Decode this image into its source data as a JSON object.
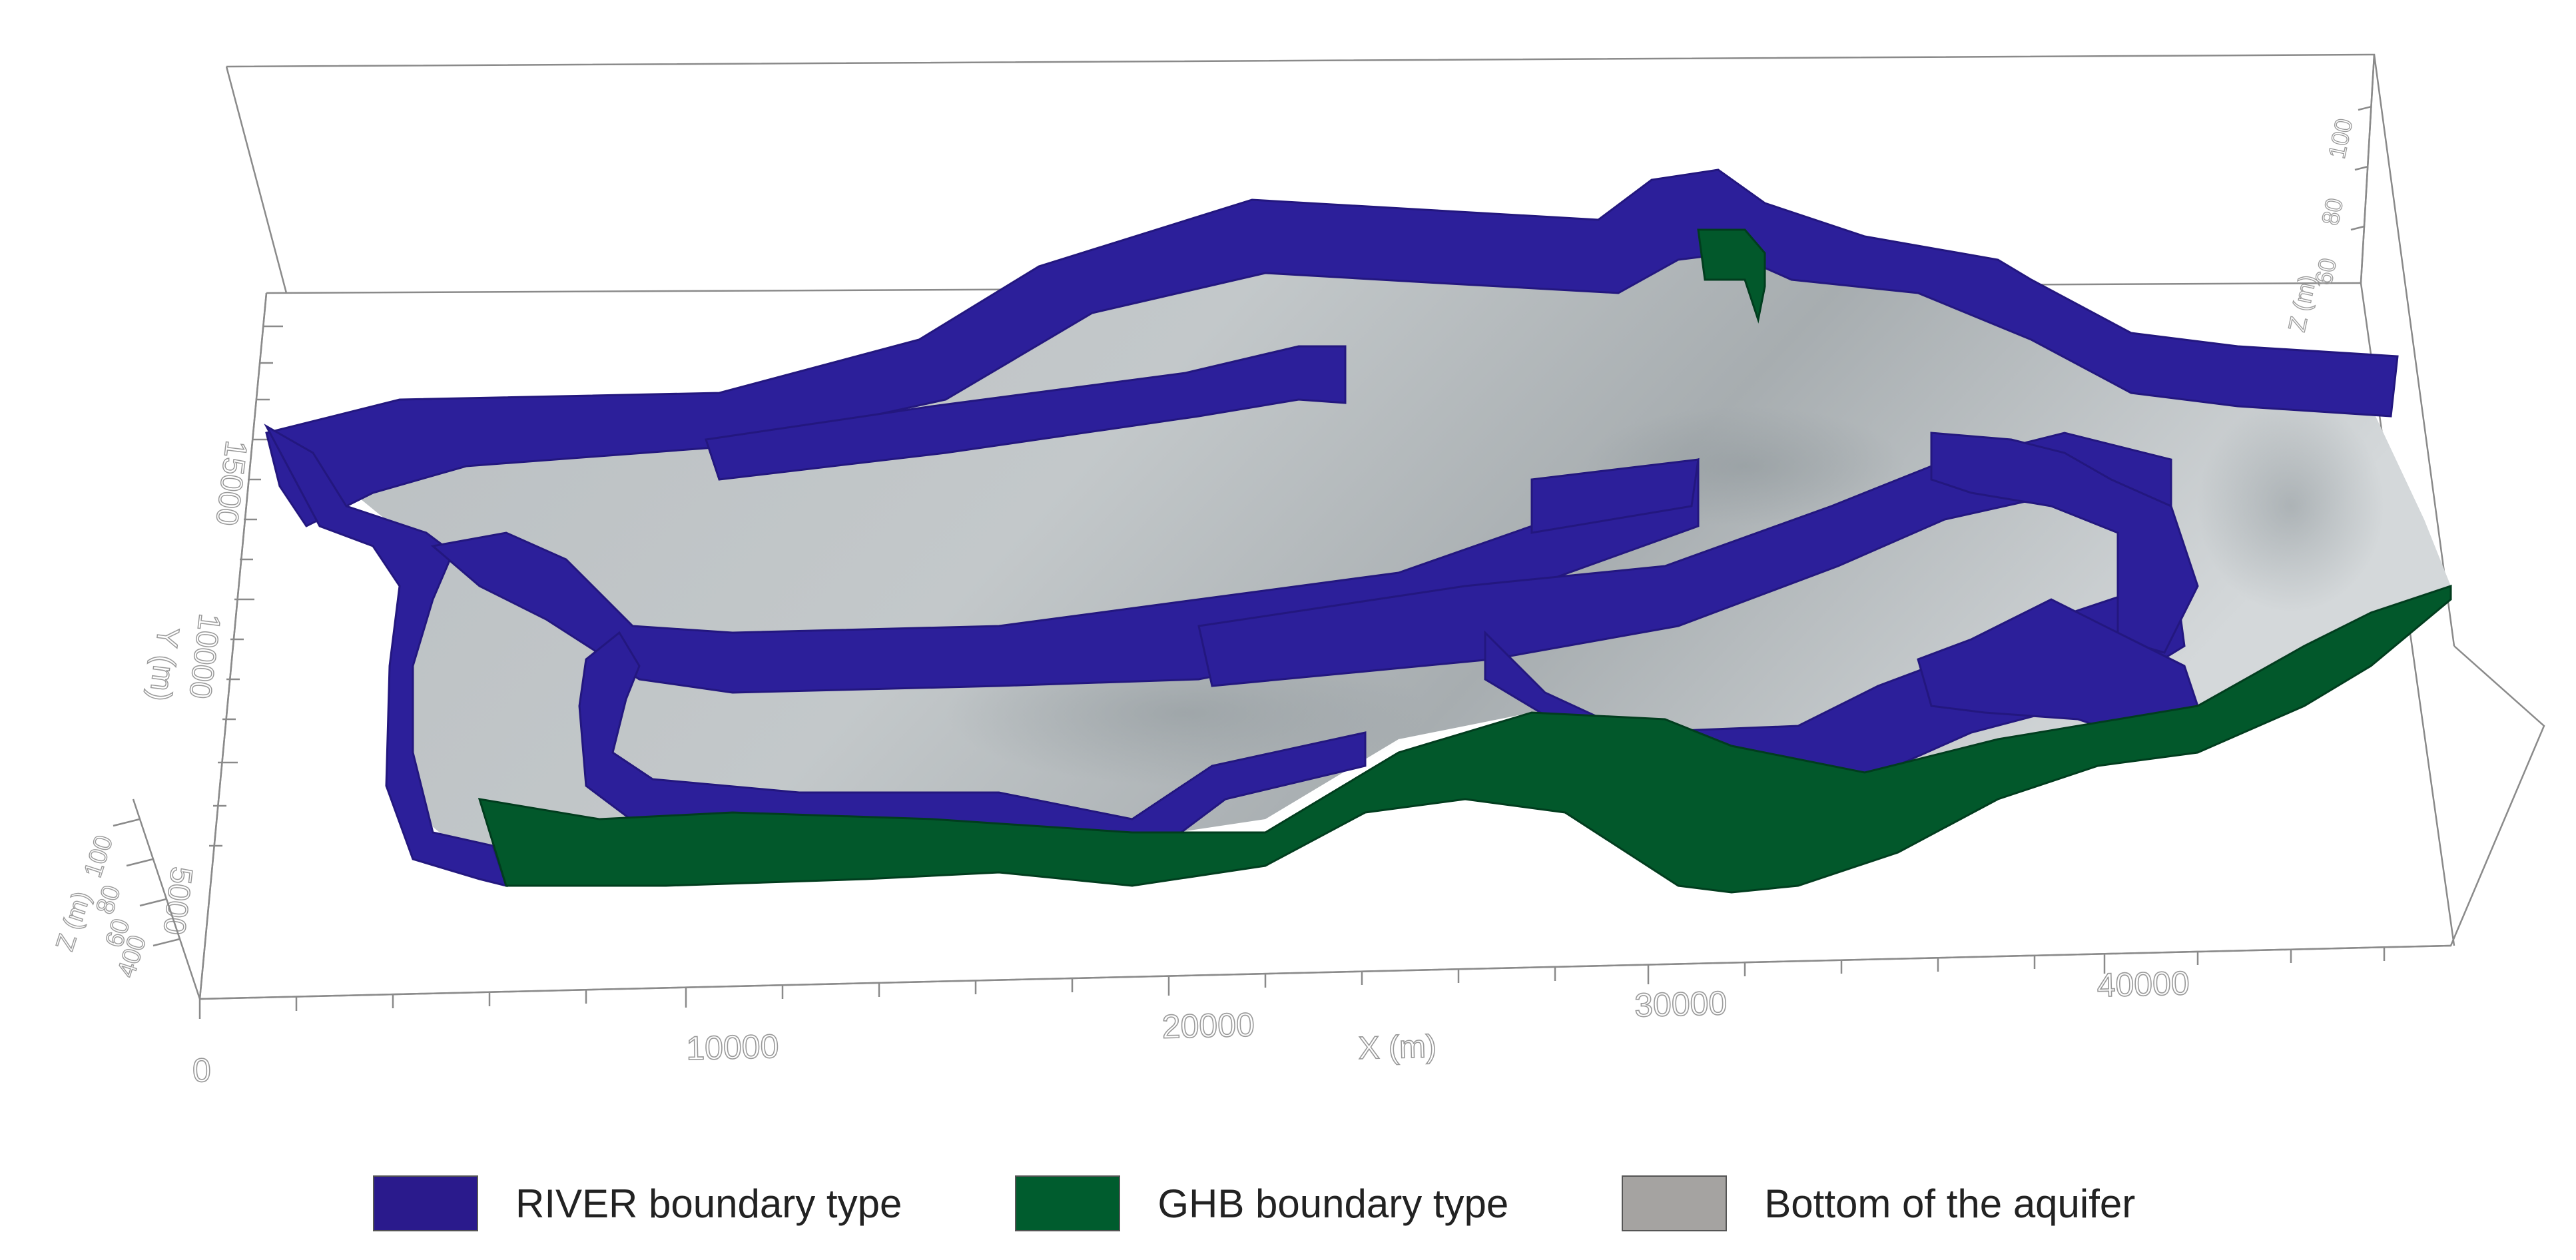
{
  "axes": {
    "x": {
      "title": "X (m)",
      "ticks": [
        "0",
        "10000",
        "20000",
        "30000",
        "40000"
      ]
    },
    "y": {
      "title": "Y (m)",
      "ticks": [
        "5000",
        "10000",
        "15000"
      ]
    },
    "z": {
      "title": "Z (m)",
      "ticks": [
        "400",
        "60",
        "80",
        "100"
      ]
    },
    "z_back": {
      "title": "Z (m)",
      "ticks": [
        "60",
        "80",
        "100"
      ]
    }
  },
  "legend": [
    {
      "label": "RIVER boundary type",
      "color": "#2a1a8c"
    },
    {
      "label": "GHB boundary type",
      "color": "#005c2e"
    },
    {
      "label": "Bottom of the aquifer",
      "color": "#a5a3a1"
    }
  ],
  "colors": {
    "river": "#2c1f9a",
    "ghb": "#02582b",
    "aquifer_bottom": "#b3b8bb",
    "axis_line": "#8a8a8a"
  }
}
